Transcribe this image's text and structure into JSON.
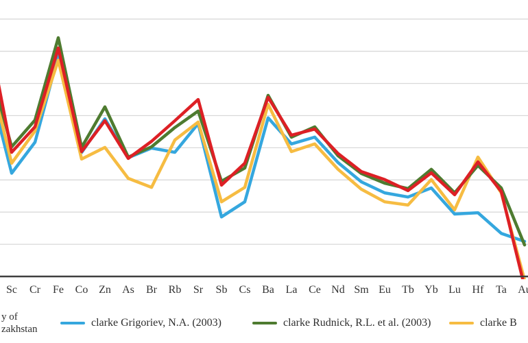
{
  "chart_data": {
    "type": "line",
    "title": "",
    "x_labels": [
      "",
      "Sc",
      "Cr",
      "Fe",
      "Co",
      "Zn",
      "As",
      "Br",
      "Rb",
      "Sr",
      "Sb",
      "Cs",
      "Ba",
      "La",
      "Ce",
      "Nd",
      "Sm",
      "Eu",
      "Tb",
      "Yb",
      "Lu",
      "Hf",
      "Ta",
      "Au"
    ],
    "x_axis_note": "first data column and part of last label are clipped by the image edges",
    "y_axis": {
      "labels_visible": false,
      "unit": "gridline-units above the x-axis (axis labels clipped off left edge)",
      "gridline_count": 8,
      "ylim": [
        0,
        8.6
      ]
    },
    "legend_position": "bottom",
    "series": [
      {
        "name": "clarke Grigoriev, N.A. (2003)",
        "color": "#35A7DE",
        "values": [
          6.07,
          3.21,
          4.17,
          6.86,
          3.85,
          4.9,
          3.69,
          3.99,
          3.86,
          4.75,
          1.85,
          2.32,
          4.93,
          4.12,
          4.33,
          3.54,
          2.94,
          2.6,
          2.47,
          2.75,
          1.94,
          1.98,
          1.34,
          1.09
        ]
      },
      {
        "name": "clarke B",
        "color": "#F6BC42",
        "values": [
          6.5,
          3.52,
          4.52,
          6.72,
          3.65,
          4.01,
          3.05,
          2.77,
          4.24,
          4.8,
          2.32,
          2.77,
          5.35,
          3.88,
          4.12,
          3.33,
          2.71,
          2.32,
          2.22,
          3.01,
          2.07,
          3.71,
          2.6,
          -0.11
        ]
      },
      {
        "name": "clarke Rudnick, R.L. et al. (2003)",
        "color": "#4E7B30",
        "values": [
          6.67,
          4.03,
          4.86,
          7.42,
          4.01,
          5.27,
          3.71,
          4.03,
          4.63,
          5.14,
          2.96,
          3.37,
          5.63,
          4.33,
          4.65,
          3.75,
          3.2,
          2.9,
          2.73,
          3.33,
          2.6,
          3.45,
          2.75,
          0.98
        ]
      },
      {
        "name": "y of zakhstan",
        "color": "#DD2025",
        "values": [
          7.61,
          3.86,
          4.65,
          7.1,
          3.88,
          4.84,
          3.67,
          4.2,
          4.84,
          5.5,
          2.84,
          3.52,
          5.57,
          4.39,
          4.58,
          3.82,
          3.26,
          3.01,
          2.67,
          3.22,
          2.54,
          3.56,
          2.64,
          -0.32
        ]
      }
    ]
  },
  "legend": {
    "items": [
      {
        "label_lines": [
          "y of",
          "zakhstan"
        ],
        "marker_color": null,
        "note": "clipped at left edge"
      },
      {
        "label": "clarke Grigoriev, N.A. (2003)",
        "marker_color": "#35A7DE"
      },
      {
        "label": "clarke Rudnick, R.L. et al. (2003)",
        "marker_color": "#4E7B30"
      },
      {
        "label": "clarke B",
        "marker_color": "#F6BC42",
        "note": "clipped at right edge"
      }
    ]
  },
  "colors": {
    "background": "#FFFFFF",
    "gridline": "#D9D9D9",
    "axis_line": "#3F3F3F",
    "tick_text": "#333333",
    "legend_text": "#2E2E2E"
  }
}
